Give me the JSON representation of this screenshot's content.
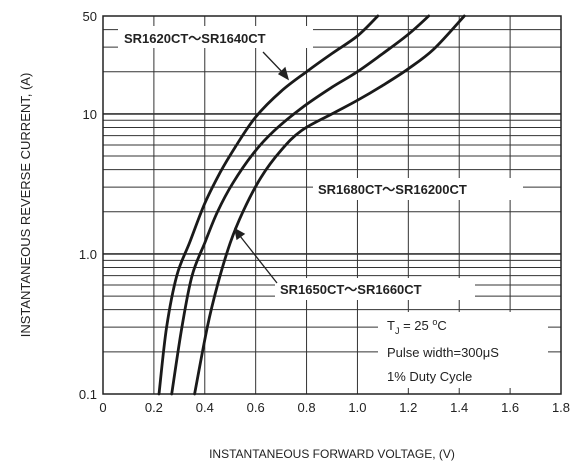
{
  "chart_data": {
    "type": "line",
    "xlabel": "INSTANTANEOUS FORWARD VOLTAGE, (V)",
    "ylabel": "INSTANTANEOUS REVERSE CURRENT, (A)",
    "x_ticks": [
      "0",
      "0.2",
      "0.4",
      "0.6",
      "0.8",
      "1.0",
      "1.2",
      "1.4",
      "1.6",
      "1.8"
    ],
    "y_ticks": [
      "0.1",
      "1.0",
      "10",
      "50"
    ],
    "xlim": [
      0,
      1.8
    ],
    "ylim": [
      0.1,
      50
    ],
    "yscale": "log",
    "grid": true,
    "series": [
      {
        "name": "SR1620CT～SR1640CT",
        "points": [
          [
            0.22,
            0.1
          ],
          [
            0.25,
            0.3
          ],
          [
            0.29,
            0.7
          ],
          [
            0.34,
            1.2
          ],
          [
            0.4,
            2.3
          ],
          [
            0.46,
            3.8
          ],
          [
            0.52,
            5.8
          ],
          [
            0.6,
            9.5
          ],
          [
            0.7,
            14.5
          ],
          [
            0.8,
            20
          ],
          [
            0.9,
            27
          ],
          [
            1.0,
            36
          ],
          [
            1.08,
            50
          ]
        ]
      },
      {
        "name": "SR1650CT～SR1660CT",
        "points": [
          [
            0.27,
            0.1
          ],
          [
            0.31,
            0.3
          ],
          [
            0.35,
            0.7
          ],
          [
            0.4,
            1.2
          ],
          [
            0.45,
            2.0
          ],
          [
            0.51,
            3.2
          ],
          [
            0.59,
            5.2
          ],
          [
            0.67,
            7.5
          ],
          [
            0.78,
            11
          ],
          [
            0.9,
            15.5
          ],
          [
            1.0,
            20
          ],
          [
            1.1,
            27
          ],
          [
            1.2,
            37
          ],
          [
            1.28,
            50
          ]
        ]
      },
      {
        "name": "SR1680CT～SR16200CT",
        "points": [
          [
            0.36,
            0.1
          ],
          [
            0.41,
            0.3
          ],
          [
            0.45,
            0.6
          ],
          [
            0.5,
            1.2
          ],
          [
            0.55,
            2.0
          ],
          [
            0.62,
            3.5
          ],
          [
            0.7,
            5.5
          ],
          [
            0.78,
            7.6
          ],
          [
            0.9,
            10
          ],
          [
            1.0,
            12.5
          ],
          [
            1.1,
            16
          ],
          [
            1.2,
            21
          ],
          [
            1.3,
            29
          ],
          [
            1.42,
            50
          ]
        ]
      }
    ],
    "annotations": [
      "T J = 25 °C",
      "Pulse width=300μS",
      "1% Duty Cycle"
    ]
  }
}
